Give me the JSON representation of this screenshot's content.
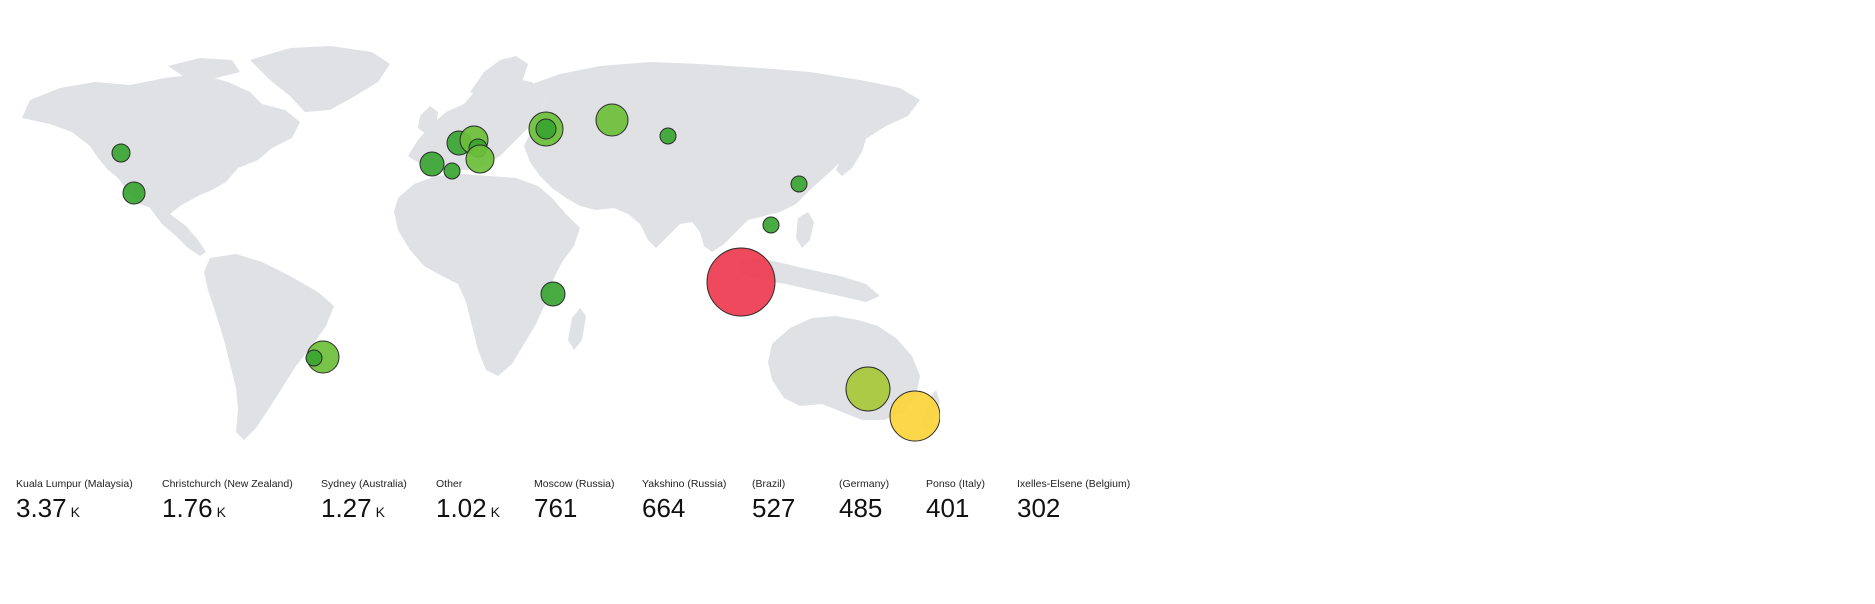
{
  "map": {
    "bubble_colors": {
      "green": "#3aa532",
      "light_green": "#6cbf3a",
      "yellow_green": "#a8c838",
      "yellow": "#fbd43a",
      "red": "#ee3a4f"
    },
    "land_color": "#dfe1e5",
    "bubbles": [
      {
        "name": "bubble-north-america-west",
        "color": "#3aa532"
      },
      {
        "name": "bubble-california",
        "color": "#3aa532"
      },
      {
        "name": "bubble-spain",
        "color": "#3aa532"
      },
      {
        "name": "bubble-france-south",
        "color": "#3aa532"
      },
      {
        "name": "bubble-belgium",
        "color": "#3aa532"
      },
      {
        "name": "bubble-germany",
        "color": "#6cbf3a"
      },
      {
        "name": "bubble-germany-east",
        "color": "#3aa532"
      },
      {
        "name": "bubble-italy",
        "color": "#6cbf3a"
      },
      {
        "name": "bubble-moscow-outer",
        "color": "#6cbf3a"
      },
      {
        "name": "bubble-moscow-inner",
        "color": "#3aa532"
      },
      {
        "name": "bubble-ural",
        "color": "#6cbf3a"
      },
      {
        "name": "bubble-siberia",
        "color": "#3aa532"
      },
      {
        "name": "bubble-east-china",
        "color": "#3aa532"
      },
      {
        "name": "bubble-vietnam",
        "color": "#3aa532"
      },
      {
        "name": "bubble-kuala-lumpur",
        "color": "#ee3a4f"
      },
      {
        "name": "bubble-east-africa",
        "color": "#3aa532"
      },
      {
        "name": "bubble-brazil",
        "color": "#6cbf3a"
      },
      {
        "name": "bubble-brazil-inner",
        "color": "#3aa532"
      },
      {
        "name": "bubble-sydney",
        "color": "#a8c838"
      },
      {
        "name": "bubble-christchurch",
        "color": "#fbd43a"
      }
    ]
  },
  "metrics": [
    {
      "label": "Kuala Lumpur (Malaysia)",
      "value": "3.37",
      "unit": "K"
    },
    {
      "label": "Christchurch (New Zealand)",
      "value": "1.76",
      "unit": "K"
    },
    {
      "label": "Sydney (Australia)",
      "value": "1.27",
      "unit": "K"
    },
    {
      "label": "Other",
      "value": "1.02",
      "unit": "K"
    },
    {
      "label": "Moscow (Russia)",
      "value": "761",
      "unit": ""
    },
    {
      "label": "Yakshino (Russia)",
      "value": "664",
      "unit": ""
    },
    {
      "label": "(Brazil)",
      "value": "527",
      "unit": ""
    },
    {
      "label": "(Germany)",
      "value": "485",
      "unit": ""
    },
    {
      "label": "Ponso (Italy)",
      "value": "401",
      "unit": ""
    },
    {
      "label": "Ixelles-Elsene (Belgium)",
      "value": "302",
      "unit": ""
    }
  ]
}
